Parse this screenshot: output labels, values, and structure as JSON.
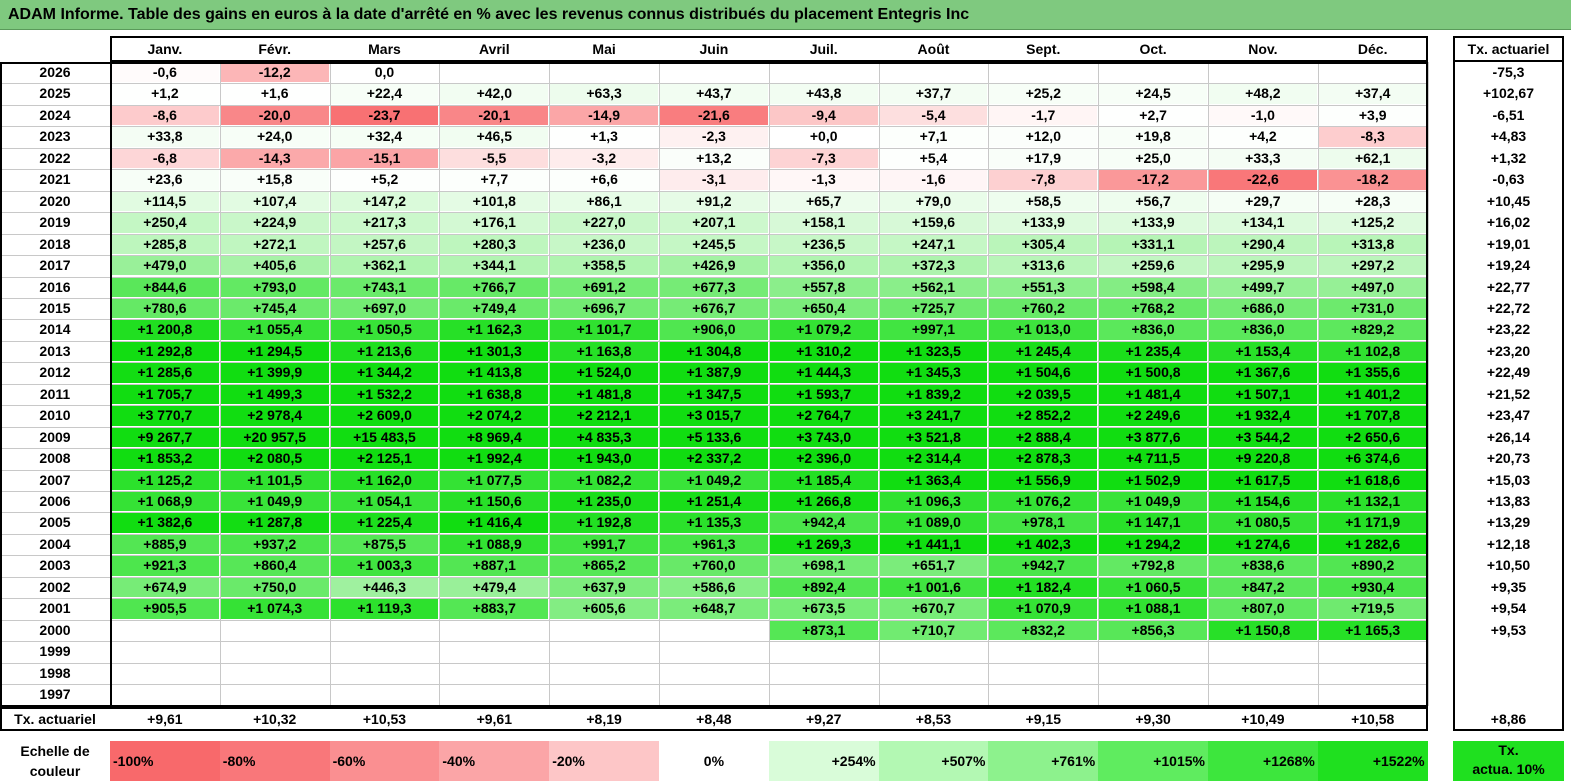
{
  "title": "ADAM Informe. Table des gains en euros à la date d'arrêté en % avec les revenus connus distribués du placement Entegris Inc",
  "months": [
    "Janv.",
    "Févr.",
    "Mars",
    "Avril",
    "Mai",
    "Juin",
    "Juil.",
    "Août",
    "Sept.",
    "Oct.",
    "Nov.",
    "Déc."
  ],
  "rate_header": "Tx. actuariel",
  "rows": [
    {
      "year": "2026",
      "values": [
        "-0,6",
        "-12,2",
        "0,0",
        "",
        "",
        "",
        "",
        "",
        "",
        "",
        "",
        ""
      ],
      "rate": "-75,3"
    },
    {
      "year": "2025",
      "values": [
        "+1,2",
        "+1,6",
        "+22,4",
        "+42,0",
        "+63,3",
        "+43,7",
        "+43,8",
        "+37,7",
        "+25,2",
        "+24,5",
        "+48,2",
        "+37,4"
      ],
      "rate": "+102,67"
    },
    {
      "year": "2024",
      "values": [
        "-8,6",
        "-20,0",
        "-23,7",
        "-20,1",
        "-14,9",
        "-21,6",
        "-9,4",
        "-5,4",
        "-1,7",
        "+2,7",
        "-1,0",
        "+3,9"
      ],
      "rate": "-6,51"
    },
    {
      "year": "2023",
      "values": [
        "+33,8",
        "+24,0",
        "+32,4",
        "+46,5",
        "+1,3",
        "-2,3",
        "+0,0",
        "+7,1",
        "+12,0",
        "+19,8",
        "+4,2",
        "-8,3"
      ],
      "rate": "+4,83"
    },
    {
      "year": "2022",
      "values": [
        "-6,8",
        "-14,3",
        "-15,1",
        "-5,5",
        "-3,2",
        "+13,2",
        "-7,3",
        "+5,4",
        "+17,9",
        "+25,0",
        "+33,3",
        "+62,1"
      ],
      "rate": "+1,32"
    },
    {
      "year": "2021",
      "values": [
        "+23,6",
        "+15,8",
        "+5,2",
        "+7,7",
        "+6,6",
        "-3,1",
        "-1,3",
        "-1,6",
        "-7,8",
        "-17,2",
        "-22,6",
        "-18,2"
      ],
      "rate": "-0,63"
    },
    {
      "year": "2020",
      "values": [
        "+114,5",
        "+107,4",
        "+147,2",
        "+101,8",
        "+86,1",
        "+91,2",
        "+65,7",
        "+79,0",
        "+58,5",
        "+56,7",
        "+29,7",
        "+28,3"
      ],
      "rate": "+10,45"
    },
    {
      "year": "2019",
      "values": [
        "+250,4",
        "+224,9",
        "+217,3",
        "+176,1",
        "+227,0",
        "+207,1",
        "+158,1",
        "+159,6",
        "+133,9",
        "+133,9",
        "+134,1",
        "+125,2"
      ],
      "rate": "+16,02"
    },
    {
      "year": "2018",
      "values": [
        "+285,8",
        "+272,1",
        "+257,6",
        "+280,3",
        "+236,0",
        "+245,5",
        "+236,5",
        "+247,1",
        "+305,4",
        "+331,1",
        "+290,4",
        "+313,8"
      ],
      "rate": "+19,01"
    },
    {
      "year": "2017",
      "values": [
        "+479,0",
        "+405,6",
        "+362,1",
        "+344,1",
        "+358,5",
        "+426,9",
        "+356,0",
        "+372,3",
        "+313,6",
        "+259,6",
        "+295,9",
        "+297,2"
      ],
      "rate": "+19,24"
    },
    {
      "year": "2016",
      "values": [
        "+844,6",
        "+793,0",
        "+743,1",
        "+766,7",
        "+691,2",
        "+677,3",
        "+557,8",
        "+562,1",
        "+551,3",
        "+598,4",
        "+499,7",
        "+497,0"
      ],
      "rate": "+22,77"
    },
    {
      "year": "2015",
      "values": [
        "+780,6",
        "+745,4",
        "+697,0",
        "+749,4",
        "+696,7",
        "+676,7",
        "+650,4",
        "+725,7",
        "+760,2",
        "+768,2",
        "+686,0",
        "+731,0"
      ],
      "rate": "+22,72"
    },
    {
      "year": "2014",
      "values": [
        "+1 200,8",
        "+1 055,4",
        "+1 050,5",
        "+1 162,3",
        "+1 101,7",
        "+906,0",
        "+1 079,2",
        "+997,1",
        "+1 013,0",
        "+836,0",
        "+836,0",
        "+829,2"
      ],
      "rate": "+23,22"
    },
    {
      "year": "2013",
      "values": [
        "+1 292,8",
        "+1 294,5",
        "+1 213,6",
        "+1 301,3",
        "+1 163,8",
        "+1 304,8",
        "+1 310,2",
        "+1 323,5",
        "+1 245,4",
        "+1 235,4",
        "+1 153,4",
        "+1 102,8"
      ],
      "rate": "+23,20"
    },
    {
      "year": "2012",
      "values": [
        "+1 285,6",
        "+1 399,9",
        "+1 344,2",
        "+1 413,8",
        "+1 524,0",
        "+1 387,9",
        "+1 444,3",
        "+1 345,3",
        "+1 504,6",
        "+1 500,8",
        "+1 367,6",
        "+1 355,6"
      ],
      "rate": "+22,49"
    },
    {
      "year": "2011",
      "values": [
        "+1 705,7",
        "+1 499,3",
        "+1 532,2",
        "+1 638,8",
        "+1 481,8",
        "+1 347,5",
        "+1 593,7",
        "+1 839,2",
        "+2 039,5",
        "+1 481,4",
        "+1 507,1",
        "+1 401,2"
      ],
      "rate": "+21,52"
    },
    {
      "year": "2010",
      "values": [
        "+3 770,7",
        "+2 978,4",
        "+2 609,0",
        "+2 074,2",
        "+2 212,1",
        "+3 015,7",
        "+2 764,7",
        "+3 241,7",
        "+2 852,2",
        "+2 249,6",
        "+1 932,4",
        "+1 707,8"
      ],
      "rate": "+23,47"
    },
    {
      "year": "2009",
      "values": [
        "+9 267,7",
        "+20 957,5",
        "+15 483,5",
        "+8 969,4",
        "+4 835,3",
        "+5 133,6",
        "+3 743,0",
        "+3 521,8",
        "+2 888,4",
        "+3 877,6",
        "+3 544,2",
        "+2 650,6"
      ],
      "rate": "+26,14"
    },
    {
      "year": "2008",
      "values": [
        "+1 853,2",
        "+2 080,5",
        "+2 125,1",
        "+1 992,4",
        "+1 943,0",
        "+2 337,2",
        "+2 396,0",
        "+2 314,4",
        "+2 878,3",
        "+4 711,5",
        "+9 220,8",
        "+6 374,6"
      ],
      "rate": "+20,73"
    },
    {
      "year": "2007",
      "values": [
        "+1 125,2",
        "+1 101,5",
        "+1 162,0",
        "+1 077,5",
        "+1 082,2",
        "+1 049,2",
        "+1 185,4",
        "+1 363,4",
        "+1 556,9",
        "+1 502,9",
        "+1 617,5",
        "+1 618,6"
      ],
      "rate": "+15,03"
    },
    {
      "year": "2006",
      "values": [
        "+1 068,9",
        "+1 049,9",
        "+1 054,1",
        "+1 150,6",
        "+1 235,0",
        "+1 251,4",
        "+1 266,8",
        "+1 096,3",
        "+1 076,2",
        "+1 049,9",
        "+1 154,6",
        "+1 132,1"
      ],
      "rate": "+13,83"
    },
    {
      "year": "2005",
      "values": [
        "+1 382,6",
        "+1 287,8",
        "+1 225,4",
        "+1 416,4",
        "+1 192,8",
        "+1 135,3",
        "+942,4",
        "+1 089,0",
        "+978,1",
        "+1 147,1",
        "+1 080,5",
        "+1 171,9"
      ],
      "rate": "+13,29"
    },
    {
      "year": "2004",
      "values": [
        "+885,9",
        "+937,2",
        "+875,5",
        "+1 088,9",
        "+991,7",
        "+961,3",
        "+1 269,3",
        "+1 441,1",
        "+1 402,3",
        "+1 294,2",
        "+1 274,6",
        "+1 282,6"
      ],
      "rate": "+12,18"
    },
    {
      "year": "2003",
      "values": [
        "+921,3",
        "+860,4",
        "+1 003,3",
        "+887,1",
        "+865,2",
        "+760,0",
        "+698,1",
        "+651,7",
        "+942,7",
        "+792,8",
        "+838,6",
        "+890,2"
      ],
      "rate": "+10,50"
    },
    {
      "year": "2002",
      "values": [
        "+674,9",
        "+750,0",
        "+446,3",
        "+479,4",
        "+637,9",
        "+586,6",
        "+892,4",
        "+1 001,6",
        "+1 182,4",
        "+1 060,5",
        "+847,2",
        "+930,4"
      ],
      "rate": "+9,35"
    },
    {
      "year": "2001",
      "values": [
        "+905,5",
        "+1 074,3",
        "+1 119,3",
        "+883,7",
        "+605,6",
        "+648,7",
        "+673,5",
        "+670,7",
        "+1 070,9",
        "+1 088,1",
        "+807,0",
        "+719,5"
      ],
      "rate": "+9,54"
    },
    {
      "year": "2000",
      "values": [
        "",
        "",
        "",
        "",
        "",
        "",
        "+873,1",
        "+710,7",
        "+832,2",
        "+856,3",
        "+1 150,8",
        "+1 165,3"
      ],
      "rate": "+9,53"
    },
    {
      "year": "1999",
      "values": [
        "",
        "",
        "",
        "",
        "",
        "",
        "",
        "",
        "",
        "",
        "",
        ""
      ],
      "rate": ""
    },
    {
      "year": "1998",
      "values": [
        "",
        "",
        "",
        "",
        "",
        "",
        "",
        "",
        "",
        "",
        "",
        ""
      ],
      "rate": ""
    },
    {
      "year": "1997",
      "values": [
        "",
        "",
        "",
        "",
        "",
        "",
        "",
        "",
        "",
        "",
        "",
        ""
      ],
      "rate": ""
    }
  ],
  "footer": {
    "label": "Tx. actuariel",
    "values": [
      "+9,61",
      "+10,32",
      "+10,53",
      "+9,61",
      "+8,19",
      "+8,48",
      "+9,27",
      "+8,53",
      "+9,15",
      "+9,30",
      "+10,49",
      "+10,58"
    ],
    "rate": "+8,86"
  },
  "legend": {
    "label_line1": "Echelle de",
    "label_line2": "couleur",
    "steps": [
      {
        "text": "-100%",
        "color": "#f8696b",
        "align": "l"
      },
      {
        "text": "-80%",
        "color": "#f9777a",
        "align": "l"
      },
      {
        "text": "-60%",
        "color": "#fa8f91",
        "align": "l"
      },
      {
        "text": "-40%",
        "color": "#fba5a7",
        "align": "l"
      },
      {
        "text": "-20%",
        "color": "#fdc6c7",
        "align": "l"
      },
      {
        "text": "0%",
        "color": "#ffffff",
        "align": "c"
      },
      {
        "text": "+254%",
        "color": "#d9fcd9",
        "align": "r"
      },
      {
        "text": "+507%",
        "color": "#b3f8b3",
        "align": "r"
      },
      {
        "text": "+761%",
        "color": "#8df28d",
        "align": "r"
      },
      {
        "text": "+1015%",
        "color": "#5fec5f",
        "align": "r"
      },
      {
        "text": "+1268%",
        "color": "#3de63d",
        "align": "r"
      },
      {
        "text": "+1522%",
        "color": "#1fe01f",
        "align": "r"
      }
    ],
    "rate_line1": "Tx.",
    "rate_line2": "actua. 10%",
    "rate_color": "#1fe01f"
  },
  "colors": {
    "title_bg": "#7fc97f",
    "neg_max": "#f8696b",
    "neutral": "#ffffff",
    "pos_max": "#11dd11"
  }
}
